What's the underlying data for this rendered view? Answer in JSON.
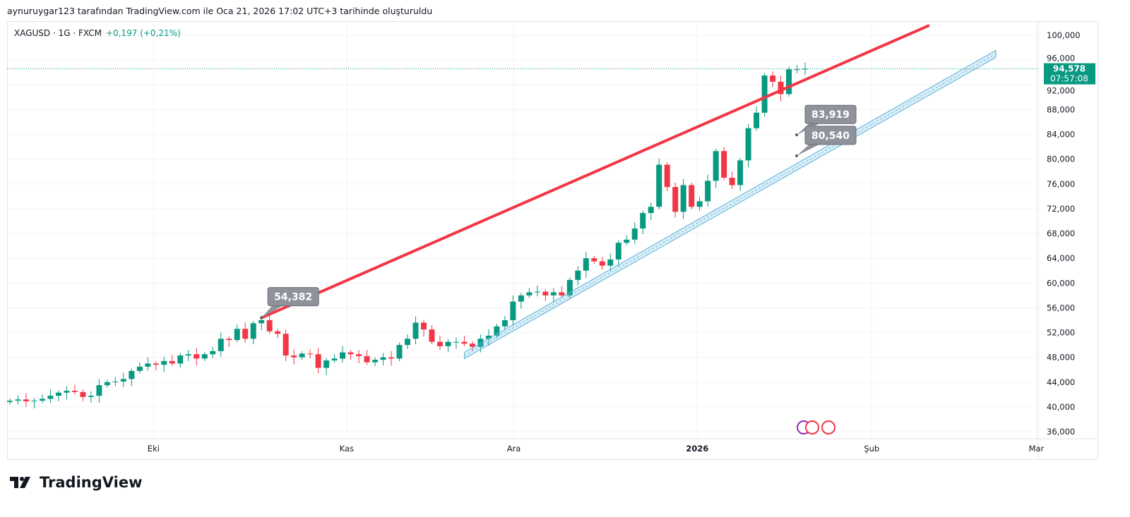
{
  "header": {
    "attribution": "aynuruygar123 tarafından TradingView.com ile Oca 21, 2026 17:02 UTC+3 tarihinde oluşturuldu"
  },
  "symbol": {
    "name": "XAGUSD · 1G · FXCM",
    "change": "+0,197 (+0,21%)"
  },
  "logo": {
    "text": "TradingView"
  },
  "colors": {
    "up": "#089981",
    "down": "#f23645",
    "trend": "#f23645",
    "channel": "#5fb3dc"
  },
  "chart_data": {
    "type": "candlestick",
    "title": "XAGUSD · 1G · FXCM",
    "ylim": [
      34000,
      102000
    ],
    "yticks": [
      "100,000",
      "96,000",
      "92,000",
      "88,000",
      "84,000",
      "80,000",
      "76,000",
      "72,000",
      "68,000",
      "64,000",
      "60,000",
      "56,000",
      "52,000",
      "48,000",
      "44,000",
      "40,000",
      "36,000"
    ],
    "ytick_values": [
      100000,
      96000,
      92000,
      88000,
      84000,
      80000,
      76000,
      72000,
      68000,
      64000,
      60000,
      56000,
      52000,
      48000,
      44000,
      40000,
      36000
    ],
    "xticks": [
      {
        "label": "Eki",
        "bar": 17.7
      },
      {
        "label": "Kas",
        "bar": 41.5
      },
      {
        "label": "Ara",
        "bar": 62.1
      },
      {
        "label": "2026",
        "bar": 84.7,
        "bold": true
      },
      {
        "label": "Şub",
        "bar": 106.2
      },
      {
        "label": "Mar",
        "bar": 126.5
      }
    ],
    "closes": [
      41.0,
      41.2,
      40.9,
      41.0,
      41.3,
      41.8,
      42.3,
      42.6,
      42.4,
      41.6,
      41.8,
      43.5,
      44.0,
      44.1,
      44.5,
      45.8,
      46.5,
      47.0,
      46.8,
      47.4,
      47.0,
      48.3,
      48.5,
      47.8,
      48.5,
      49.0,
      51.0,
      50.8,
      52.6,
      51.0,
      53.5,
      54.0,
      52.2,
      51.8,
      48.3,
      48.0,
      48.6,
      48.5,
      46.3,
      47.5,
      47.8,
      48.8,
      48.5,
      48.2,
      47.2,
      47.6,
      48.0,
      47.8,
      50.0,
      51.0,
      53.6,
      52.5,
      50.5,
      49.8,
      50.5,
      50.5,
      50.2,
      49.7,
      51.0,
      51.5,
      53.0,
      54.0,
      57.0,
      58.0,
      58.5,
      58.6,
      58.0,
      58.5,
      58.0,
      60.5,
      62.0,
      64.0,
      63.5,
      62.8,
      63.8,
      66.5,
      67.0,
      68.8,
      71.3,
      72.3,
      79.1,
      75.5,
      71.5,
      75.8,
      72.3,
      73.2,
      76.5,
      81.3,
      77.0,
      75.8,
      79.8,
      85.0,
      87.5,
      93.5,
      92.5,
      90.5,
      94.5,
      94.5,
      94.6
    ],
    "last_price": {
      "value": "94,578",
      "countdown": "07:57:08",
      "raw": 94578
    },
    "trendline": {
      "from": {
        "bar": 31,
        "value": 54382
      },
      "to": {
        "bar": 113.3,
        "value": 101600
      }
    },
    "channel": {
      "from": {
        "bar": 56,
        "value": 48800
      },
      "to": {
        "bar": 121.5,
        "value": 97000
      }
    },
    "callouts": [
      {
        "label": "54,382",
        "bar": 31,
        "value": 54382
      },
      {
        "label": "83,919",
        "bar": 98,
        "value": 83919
      },
      {
        "label": "80,540",
        "bar": 98,
        "value": 80540
      }
    ]
  }
}
